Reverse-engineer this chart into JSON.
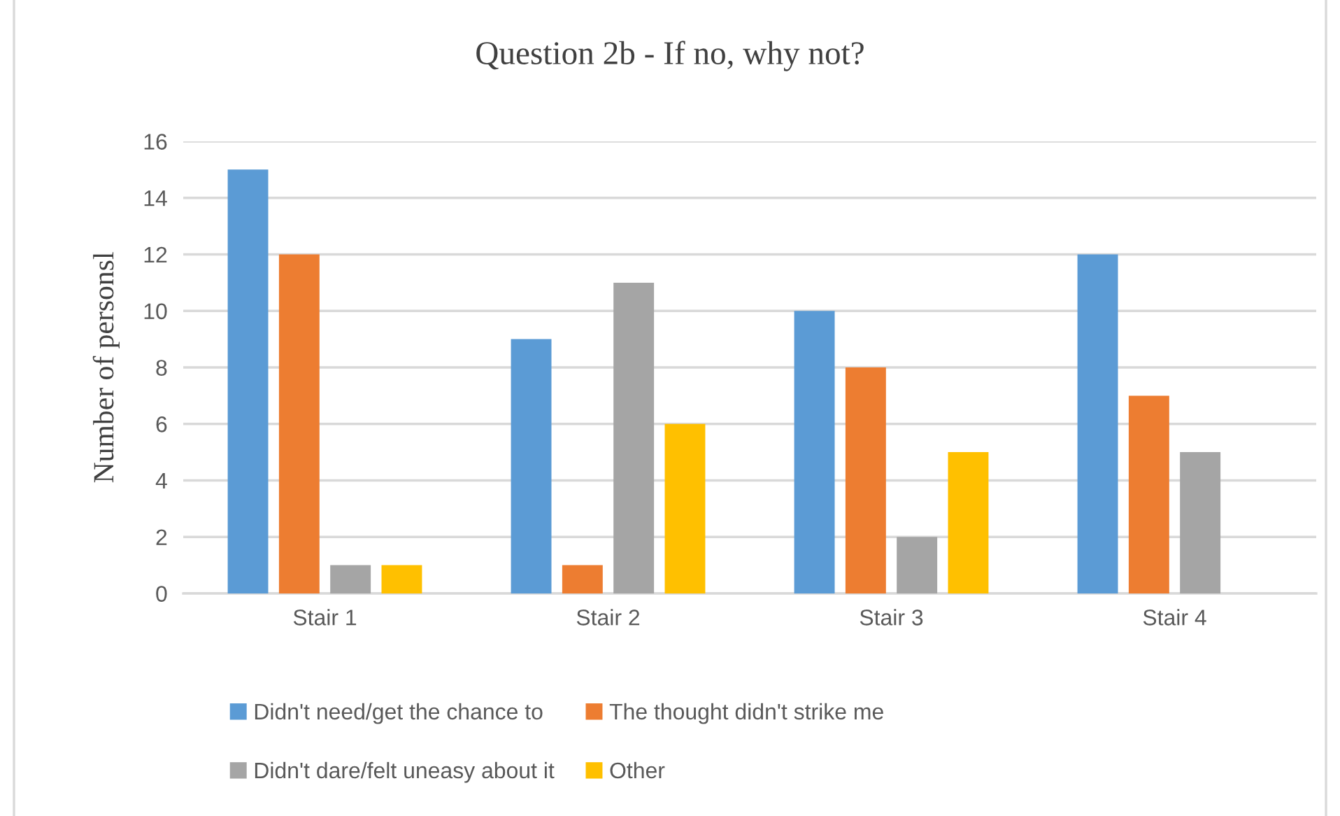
{
  "chart_data": {
    "type": "bar",
    "title": "Question 2b - If no, why not?",
    "ylabel": "Number of personsl",
    "categories": [
      "Stair 1",
      "Stair 2",
      "Stair 3",
      "Stair 4"
    ],
    "series": [
      {
        "name": "Didn't need/get the chance to",
        "color": "#5b9bd5",
        "values": [
          15,
          9,
          10,
          12
        ]
      },
      {
        "name": "The thought didn't strike me",
        "color": "#ed7d31",
        "values": [
          12,
          1,
          8,
          7
        ]
      },
      {
        "name": "Didn't dare/felt uneasy about it",
        "color": "#a5a5a5",
        "values": [
          1,
          11,
          2,
          5
        ]
      },
      {
        "name": "Other",
        "color": "#ffc000",
        "values": [
          1,
          6,
          5,
          null
        ]
      }
    ],
    "ylim": [
      0,
      16
    ],
    "yticks": [
      0,
      2,
      4,
      6,
      8,
      10,
      12,
      14,
      16
    ],
    "grid": "y",
    "legend": "bottom"
  }
}
